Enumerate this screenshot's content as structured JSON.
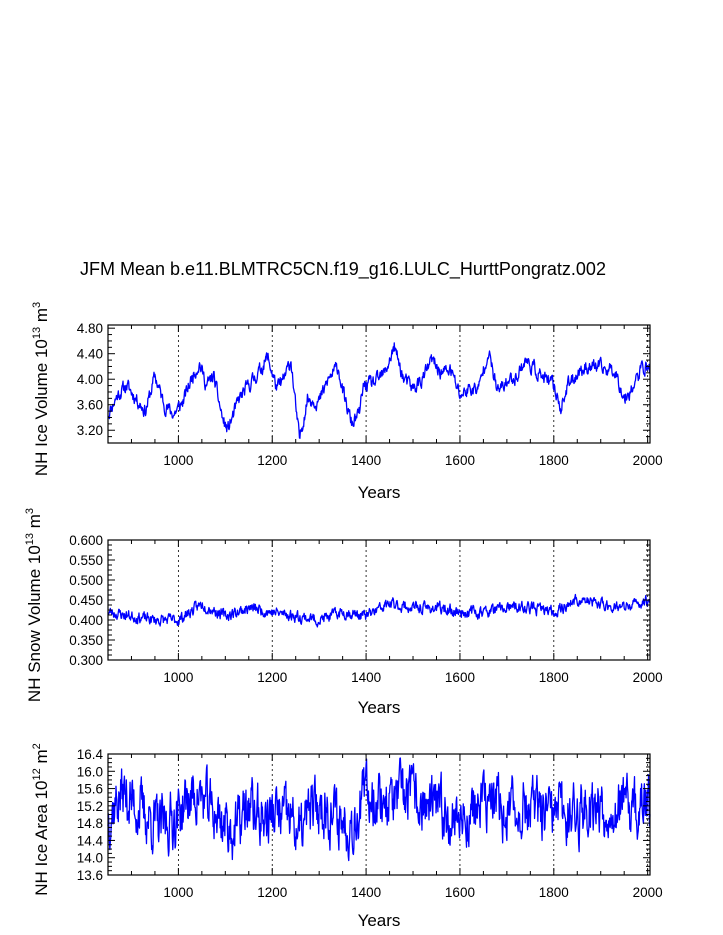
{
  "title": "JFM Mean b.e11.BLMTRC5CN.f19_g16.LULC_HurttPongratz.002",
  "chart_data": [
    {
      "type": "line",
      "name": "ice-volume",
      "ylabel_main": "NH Ice Volume 10",
      "ylabel_sup1": "13",
      "ylabel_mid": " m",
      "ylabel_sup2": "3",
      "xlabel": "Years",
      "xlim": [
        850,
        2005
      ],
      "ylim": [
        3.0,
        4.85
      ],
      "xticks": [
        "1000",
        "1200",
        "1400",
        "1600",
        "1800",
        "2000"
      ],
      "yticks": [
        "3.20",
        "3.60",
        "4.00",
        "4.40",
        "4.80"
      ],
      "color": "#0000ff",
      "anchors": [
        [
          850,
          3.45
        ],
        [
          870,
          3.75
        ],
        [
          890,
          3.9
        ],
        [
          910,
          3.7
        ],
        [
          930,
          3.5
        ],
        [
          950,
          4.05
        ],
        [
          970,
          3.6
        ],
        [
          990,
          3.45
        ],
        [
          1010,
          3.65
        ],
        [
          1030,
          4.05
        ],
        [
          1045,
          4.25
        ],
        [
          1060,
          3.9
        ],
        [
          1075,
          4.05
        ],
        [
          1095,
          3.35
        ],
        [
          1105,
          3.2
        ],
        [
          1130,
          3.7
        ],
        [
          1150,
          3.9
        ],
        [
          1175,
          4.15
        ],
        [
          1190,
          4.35
        ],
        [
          1210,
          3.85
        ],
        [
          1225,
          4.0
        ],
        [
          1240,
          4.3
        ],
        [
          1250,
          3.55
        ],
        [
          1258,
          3.05
        ],
        [
          1275,
          3.7
        ],
        [
          1300,
          3.65
        ],
        [
          1320,
          4.0
        ],
        [
          1340,
          4.2
        ],
        [
          1355,
          3.65
        ],
        [
          1370,
          3.3
        ],
        [
          1385,
          3.45
        ],
        [
          1395,
          3.9
        ],
        [
          1420,
          3.95
        ],
        [
          1440,
          4.1
        ],
        [
          1460,
          4.5
        ],
        [
          1480,
          4.0
        ],
        [
          1500,
          3.85
        ],
        [
          1520,
          4.0
        ],
        [
          1540,
          4.3
        ],
        [
          1560,
          4.1
        ],
        [
          1580,
          4.15
        ],
        [
          1600,
          3.75
        ],
        [
          1620,
          3.85
        ],
        [
          1640,
          3.85
        ],
        [
          1660,
          4.45
        ],
        [
          1680,
          3.8
        ],
        [
          1700,
          3.95
        ],
        [
          1720,
          4.05
        ],
        [
          1740,
          4.3
        ],
        [
          1760,
          4.15
        ],
        [
          1780,
          4.0
        ],
        [
          1800,
          3.9
        ],
        [
          1815,
          3.55
        ],
        [
          1830,
          3.9
        ],
        [
          1850,
          4.1
        ],
        [
          1870,
          4.2
        ],
        [
          1890,
          4.2
        ],
        [
          1910,
          4.15
        ],
        [
          1930,
          4.15
        ],
        [
          1950,
          3.7
        ],
        [
          1970,
          3.9
        ],
        [
          1990,
          4.2
        ],
        [
          2005,
          4.15
        ]
      ],
      "noise": 0.14,
      "seed": 11
    },
    {
      "type": "line",
      "name": "snow-volume",
      "ylabel_main": "NH Snow Volume 10",
      "ylabel_sup1": "13",
      "ylabel_mid": " m",
      "ylabel_sup2": "3",
      "xlabel": "Years",
      "xlim": [
        850,
        2005
      ],
      "ylim": [
        0.3,
        0.6
      ],
      "xticks": [
        "1000",
        "1200",
        "1400",
        "1600",
        "1800",
        "2000"
      ],
      "yticks": [
        "0.300",
        "0.350",
        "0.400",
        "0.450",
        "0.500",
        "0.550",
        "0.600"
      ],
      "color": "#0000ff",
      "anchors": [
        [
          850,
          0.42
        ],
        [
          900,
          0.41
        ],
        [
          950,
          0.4
        ],
        [
          1000,
          0.4
        ],
        [
          1050,
          0.44
        ],
        [
          1100,
          0.41
        ],
        [
          1150,
          0.43
        ],
        [
          1200,
          0.42
        ],
        [
          1250,
          0.41
        ],
        [
          1300,
          0.4
        ],
        [
          1350,
          0.42
        ],
        [
          1400,
          0.41
        ],
        [
          1450,
          0.44
        ],
        [
          1500,
          0.43
        ],
        [
          1550,
          0.43
        ],
        [
          1600,
          0.42
        ],
        [
          1650,
          0.42
        ],
        [
          1700,
          0.43
        ],
        [
          1750,
          0.43
        ],
        [
          1800,
          0.42
        ],
        [
          1850,
          0.45
        ],
        [
          1900,
          0.44
        ],
        [
          1950,
          0.43
        ],
        [
          2005,
          0.45
        ]
      ],
      "noise": 0.11,
      "seed": 23
    },
    {
      "type": "line",
      "name": "ice-area",
      "ylabel_main": "NH Ice Area 10",
      "ylabel_sup1": "12",
      "ylabel_mid": " m",
      "ylabel_sup2": "2",
      "xlabel": "Years",
      "xlim": [
        850,
        2005
      ],
      "ylim": [
        13.6,
        16.4
      ],
      "xticks": [
        "1000",
        "1200",
        "1400",
        "1600",
        "1800",
        "2000"
      ],
      "yticks": [
        "13.6",
        "14.0",
        "14.4",
        "14.8",
        "15.2",
        "15.6",
        "16.0",
        "16.4"
      ],
      "color": "#0000ff",
      "anchors": [
        [
          850,
          15.0
        ],
        [
          880,
          15.5
        ],
        [
          900,
          15.3
        ],
        [
          930,
          15.0
        ],
        [
          960,
          14.7
        ],
        [
          990,
          14.9
        ],
        [
          1020,
          15.3
        ],
        [
          1040,
          15.5
        ],
        [
          1070,
          15.1
        ],
        [
          1100,
          14.8
        ],
        [
          1120,
          14.6
        ],
        [
          1150,
          15.2
        ],
        [
          1180,
          14.9
        ],
        [
          1210,
          15.0
        ],
        [
          1240,
          14.9
        ],
        [
          1260,
          14.5
        ],
        [
          1280,
          15.1
        ],
        [
          1310,
          15.2
        ],
        [
          1340,
          14.9
        ],
        [
          1370,
          14.8
        ],
        [
          1400,
          15.5
        ],
        [
          1430,
          15.4
        ],
        [
          1460,
          15.3
        ],
        [
          1490,
          15.5
        ],
        [
          1520,
          15.2
        ],
        [
          1550,
          15.1
        ],
        [
          1580,
          15.0
        ],
        [
          1610,
          14.9
        ],
        [
          1640,
          15.2
        ],
        [
          1670,
          15.3
        ],
        [
          1700,
          15.0
        ],
        [
          1730,
          15.2
        ],
        [
          1760,
          15.1
        ],
        [
          1790,
          14.9
        ],
        [
          1820,
          15.1
        ],
        [
          1850,
          15.0
        ],
        [
          1880,
          15.3
        ],
        [
          1910,
          15.1
        ],
        [
          1940,
          15.2
        ],
        [
          1970,
          15.1
        ],
        [
          2005,
          15.2
        ]
      ],
      "noise": 0.55,
      "seed": 37
    }
  ]
}
